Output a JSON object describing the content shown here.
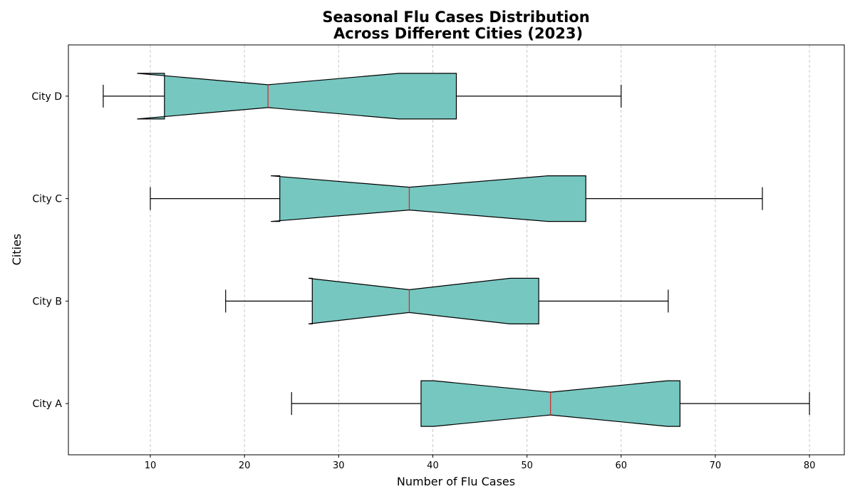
{
  "chart_data": {
    "type": "boxplot",
    "orientation": "horizontal",
    "notched": true,
    "title_lines": [
      "Seasonal Flu Cases Distribution",
      "Across Different Cities (2023)"
    ],
    "xlabel": "Number of Flu Cases",
    "ylabel": "Cities",
    "xlim": [
      1.3,
      83.7
    ],
    "xticks": [
      10,
      20,
      30,
      40,
      50,
      60,
      70,
      80
    ],
    "grid": "x-dashed",
    "colors": {
      "box_fill": "#76C7C0",
      "median": "#CC3333",
      "edge": "#000000",
      "grid": "#C8C8C8"
    },
    "categories": [
      "City A",
      "City B",
      "City C",
      "City D"
    ],
    "boxes": [
      {
        "category": "City A",
        "whislo": 25,
        "q1": 38.75,
        "notch_lo": 40.1,
        "med": 52.5,
        "notch_hi": 64.9,
        "q3": 66.25,
        "whishi": 80
      },
      {
        "category": "City B",
        "whislo": 18,
        "q1": 27.2,
        "notch_lo": 26.8,
        "med": 37.5,
        "notch_hi": 48.2,
        "q3": 51.25,
        "whishi": 65
      },
      {
        "category": "City C",
        "whislo": 10,
        "q1": 23.75,
        "notch_lo": 22.8,
        "med": 37.5,
        "notch_hi": 52.2,
        "q3": 56.25,
        "whishi": 75
      },
      {
        "category": "City D",
        "whislo": 5,
        "q1": 11.5,
        "notch_lo": 8.6,
        "med": 22.5,
        "notch_hi": 36.4,
        "q3": 42.5,
        "whishi": 60
      }
    ]
  }
}
